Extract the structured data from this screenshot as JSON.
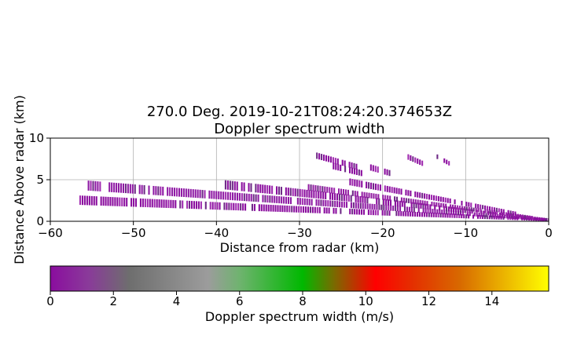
{
  "chart_data": [
    {
      "type": "scatter",
      "title": "270.0 Deg. 2019-10-21T08:24:20.374653Z\nDoppler spectrum width",
      "title_lines": [
        "270.0 Deg. 2019-10-21T08:24:20.374653Z",
        "Doppler spectrum width"
      ],
      "xlabel": "Distance from radar (km)",
      "ylabel": "Distance Above radar  (km)",
      "xlim": [
        -60,
        0
      ],
      "ylim": [
        0,
        10
      ],
      "xticks": [
        -60,
        -50,
        -40,
        -30,
        -20,
        -10,
        0
      ],
      "xtick_labels": [
        "−60",
        "−50",
        "−40",
        "−30",
        "−20",
        "−10",
        "0"
      ],
      "yticks": [
        0,
        5,
        10
      ],
      "ytick_labels": [
        "0",
        "5",
        "10"
      ],
      "grid": true,
      "colormap": "radar spectrum width",
      "color_value_range": [
        0,
        15.8
      ],
      "note_marks": "RHI radar returns drawn as sloping bands of gates, mostly near-zero spectrum width (purple)",
      "series": [
        {
          "sweep_elevation_deg": 2.0,
          "x_start": -56.5,
          "x_end": 0,
          "color": "#8a0d9e"
        },
        {
          "sweep_elevation_deg": 3.8,
          "x_start": -55.5,
          "x_end": 0,
          "color": "#8e1aa4"
        },
        {
          "sweep_elevation_deg": 5.6,
          "x_start": -39.0,
          "x_end": 0,
          "color": "#8a0d9e"
        },
        {
          "sweep_elevation_deg": 7.3,
          "x_start": -29.0,
          "x_end": -2.0,
          "color": "#931fa3"
        },
        {
          "sweep_elevation_deg": 10.2,
          "x_start": -24.0,
          "x_end": -4.0,
          "color": "#8a0d9e"
        },
        {
          "sweep_elevation_deg": 15.0,
          "x_start": -28.0,
          "x_end": -23.0,
          "color": "#8a0d9e"
        },
        {
          "sweep_elevation_deg": 13.5,
          "x_start": -26.0,
          "x_end": -22.5,
          "color": "#8a0d9e"
        },
        {
          "sweep_elevation_deg": 15.8,
          "x_start": -21.5,
          "x_end": -19.0,
          "color": "#8a0d9e"
        },
        {
          "sweep_elevation_deg": 23.5,
          "x_start": -17.0,
          "x_end": -15.3,
          "color": "#8a0d9e"
        },
        {
          "sweep_elevation_deg": 29.0,
          "x_start": -13.5,
          "x_end": -11.8,
          "color": "#8a0d9e"
        }
      ]
    },
    {
      "type": "colorbar",
      "label": "Doppler spectrum width (m/s)",
      "range": [
        0,
        15.8
      ],
      "ticks": [
        0,
        2,
        4,
        6,
        8,
        10,
        12,
        14
      ],
      "tick_labels": [
        "0",
        "2",
        "4",
        "6",
        "8",
        "10",
        "12",
        "14"
      ],
      "stops": [
        {
          "value": 0,
          "color": "#8a0d9e"
        },
        {
          "value": 1.2,
          "color": "#8a3a9a"
        },
        {
          "value": 2.5,
          "color": "#6e6e6e"
        },
        {
          "value": 5.0,
          "color": "#9c9c9c"
        },
        {
          "value": 6.0,
          "color": "#6fb36f"
        },
        {
          "value": 8.0,
          "color": "#00b800"
        },
        {
          "value": 9.0,
          "color": "#7a6a00"
        },
        {
          "value": 10.3,
          "color": "#ff0000"
        },
        {
          "value": 11.5,
          "color": "#e43000"
        },
        {
          "value": 13.0,
          "color": "#d86a00"
        },
        {
          "value": 15.8,
          "color": "#ffff00"
        }
      ]
    }
  ]
}
